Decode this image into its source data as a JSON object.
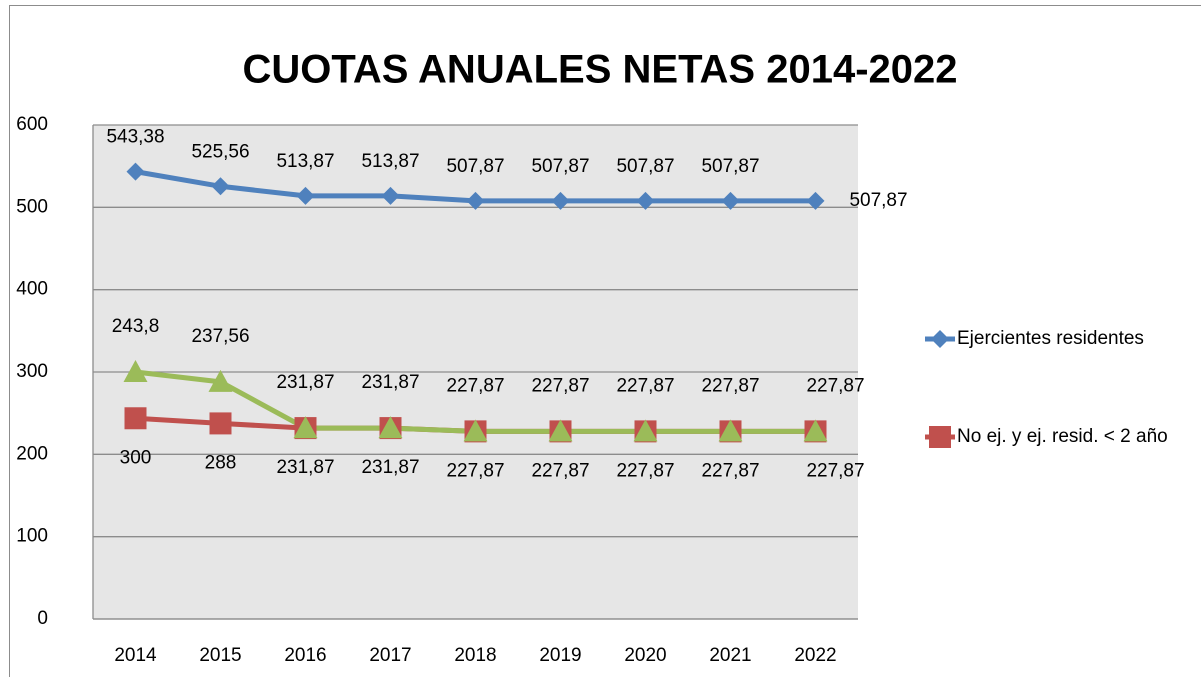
{
  "chart_data": {
    "type": "line",
    "title": "CUOTAS ANUALES NETAS 2014-2022",
    "categories": [
      "2014",
      "2015",
      "2016",
      "2017",
      "2018",
      "2019",
      "2020",
      "2021",
      "2022"
    ],
    "ylim": [
      0,
      600
    ],
    "yticks": [
      0,
      100,
      200,
      300,
      400,
      500,
      600
    ],
    "grid": true,
    "legend": "right",
    "series": [
      {
        "name": "Ejercientes residentes",
        "color": "#4f81bd",
        "marker": "diamond",
        "values": [
          543.38,
          525.56,
          513.87,
          513.87,
          507.87,
          507.87,
          507.87,
          507.87,
          507.87
        ],
        "value_labels": [
          "543,38",
          "525,56",
          "513,87",
          "513,87",
          "507,87",
          "507,87",
          "507,87",
          "507,87",
          "507,87"
        ]
      },
      {
        "name": "No ej. y ej. resid. < 2 año",
        "color": "#c0504d",
        "marker": "square",
        "values": [
          243.8,
          237.56,
          231.87,
          231.87,
          227.87,
          227.87,
          227.87,
          227.87,
          227.87
        ],
        "value_labels": [
          "243,8",
          "237,56",
          "231,87",
          "231,87",
          "227,87",
          "227,87",
          "227,87",
          "227,87",
          "227,87"
        ]
      },
      {
        "color": "#9bbb59",
        "marker": "triangle",
        "values": [
          300,
          288,
          231.87,
          231.87,
          227.87,
          227.87,
          227.87,
          227.87,
          227.87
        ],
        "value_labels": [
          "300",
          "288",
          "231,87",
          "231,87",
          "227,87",
          "227,87",
          "227,87",
          "227,87",
          "227,87"
        ]
      }
    ]
  }
}
